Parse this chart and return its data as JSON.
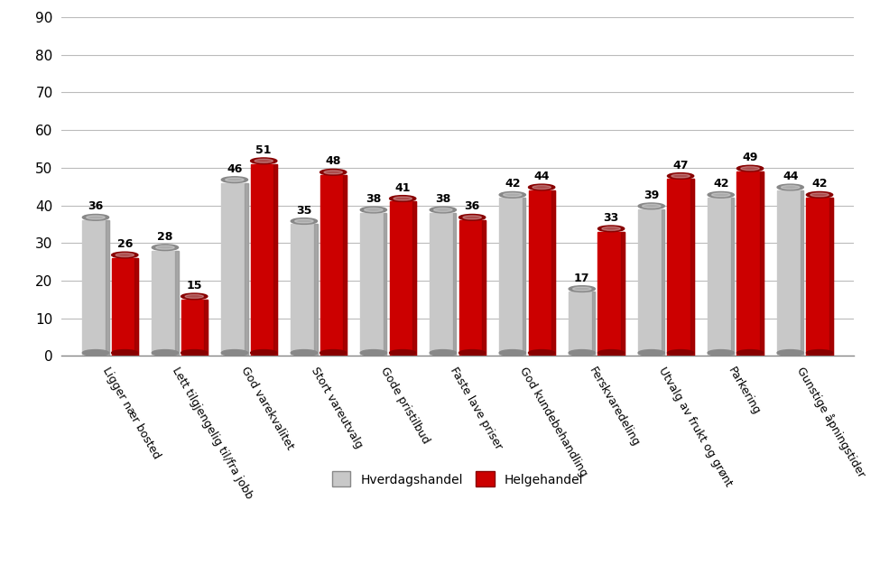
{
  "categories": [
    "Ligger nær bosted",
    "Lett tilgjengelig til/fra jobb",
    "God varekvalitet",
    "Stort vareutvalg",
    "Gode pristilbud",
    "Faste lave priser",
    "God kundebehandling",
    "Ferskvaredeling",
    "Utvalg av frukt og grønt",
    "Parkering",
    "Gunstige åpningstider"
  ],
  "hverdagshandel": [
    36,
    28,
    46,
    35,
    38,
    38,
    42,
    17,
    39,
    42,
    44
  ],
  "helgehandel": [
    26,
    15,
    51,
    48,
    41,
    36,
    44,
    33,
    47,
    49,
    42
  ],
  "hverdagshandel_color": "#c8c8c8",
  "hverdagshandel_dark": "#888888",
  "helgehandel_color": "#cc0000",
  "helgehandel_dark": "#880000",
  "bar_width": 0.38,
  "ylim": [
    0,
    90
  ],
  "yticks": [
    0,
    10,
    20,
    30,
    40,
    50,
    60,
    70,
    80,
    90
  ],
  "legend_hverdagshandel": "Hverdagshandel",
  "legend_helgehandel": "Helgehandel",
  "background_color": "#ffffff",
  "grid_color": "#bbbbbb",
  "label_fontsize": 9,
  "value_fontsize": 9,
  "legend_fontsize": 10,
  "ytick_fontsize": 11,
  "xtick_rotation": -60
}
